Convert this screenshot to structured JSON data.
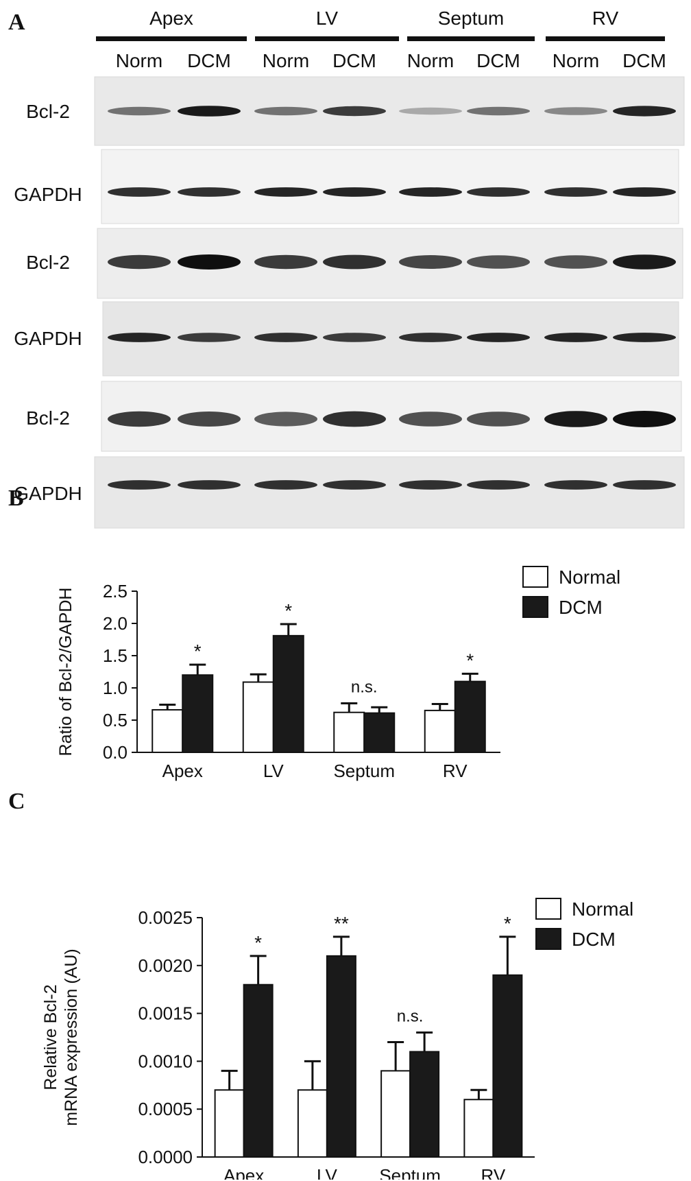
{
  "panels": {
    "a": "A",
    "b": "B",
    "c": "C"
  },
  "blot": {
    "regions": [
      "Apex",
      "LV",
      "Septum",
      "RV"
    ],
    "conditions": [
      "Norm",
      "DCM"
    ],
    "rows": [
      {
        "label": "Bcl-2",
        "intensity": [
          0.55,
          0.95,
          0.55,
          0.8,
          0.3,
          0.55,
          0.45,
          0.9
        ]
      },
      {
        "label": "GAPDH",
        "intensity": [
          0.85,
          0.85,
          0.9,
          0.9,
          0.9,
          0.85,
          0.85,
          0.9
        ]
      },
      {
        "label": "Bcl-2",
        "intensity": [
          0.8,
          1.0,
          0.8,
          0.85,
          0.75,
          0.7,
          0.7,
          0.95
        ]
      },
      {
        "label": "GAPDH",
        "intensity": [
          0.9,
          0.8,
          0.85,
          0.8,
          0.85,
          0.9,
          0.9,
          0.9
        ]
      },
      {
        "label": "Bcl-2",
        "intensity": [
          0.8,
          0.75,
          0.65,
          0.85,
          0.7,
          0.7,
          0.95,
          1.0
        ]
      },
      {
        "label": "GAPDH",
        "intensity": [
          0.85,
          0.85,
          0.85,
          0.85,
          0.85,
          0.85,
          0.85,
          0.85
        ]
      }
    ]
  },
  "chart_data": [
    {
      "type": "bar",
      "categories": [
        "Apex",
        "LV",
        "Septum",
        "RV"
      ],
      "ylabel": "Ratio of Bcl-2/GAPDH",
      "ylim": [
        0,
        2.5
      ],
      "yticks": [
        "0.0",
        "0.5",
        "1.0",
        "1.5",
        "2.0",
        "2.5"
      ],
      "yticks_values": [
        0,
        0.5,
        1.0,
        1.5,
        2.0,
        2.5
      ],
      "legend_position": "top-right",
      "series": [
        {
          "name": "Normal",
          "values": [
            0.66,
            1.09,
            0.62,
            0.65
          ],
          "errors": [
            0.08,
            0.12,
            0.14,
            0.1
          ],
          "color": "#ffffff"
        },
        {
          "name": "DCM",
          "values": [
            1.2,
            1.81,
            0.61,
            1.1
          ],
          "errors": [
            0.16,
            0.18,
            0.09,
            0.12
          ],
          "color": "#1a1a1a"
        }
      ],
      "annotations": [
        "*",
        "*",
        "n.s.",
        "*"
      ]
    },
    {
      "type": "bar",
      "categories": [
        "Apex",
        "LV",
        "Septum",
        "RV"
      ],
      "ylabel_line1": "Relative Bcl-2",
      "ylabel_line2": "mRNA expression (AU)",
      "ylim": [
        0,
        0.0025
      ],
      "yticks": [
        "0.0000",
        "0.0005",
        "0.0010",
        "0.0015",
        "0.0020",
        "0.0025"
      ],
      "yticks_values": [
        0,
        0.0005,
        0.001,
        0.0015,
        0.002,
        0.0025
      ],
      "legend_position": "top-right",
      "series": [
        {
          "name": "Normal",
          "values": [
            0.0007,
            0.0007,
            0.0009,
            0.0006
          ],
          "errors": [
            0.0002,
            0.0003,
            0.0003,
            0.0001
          ],
          "color": "#ffffff"
        },
        {
          "name": "DCM",
          "values": [
            0.0018,
            0.0021,
            0.0011,
            0.0019
          ],
          "errors": [
            0.0003,
            0.0002,
            0.0002,
            0.0004
          ],
          "color": "#1a1a1a"
        }
      ],
      "annotations": [
        "*",
        "**",
        "n.s.",
        "*"
      ]
    }
  ]
}
